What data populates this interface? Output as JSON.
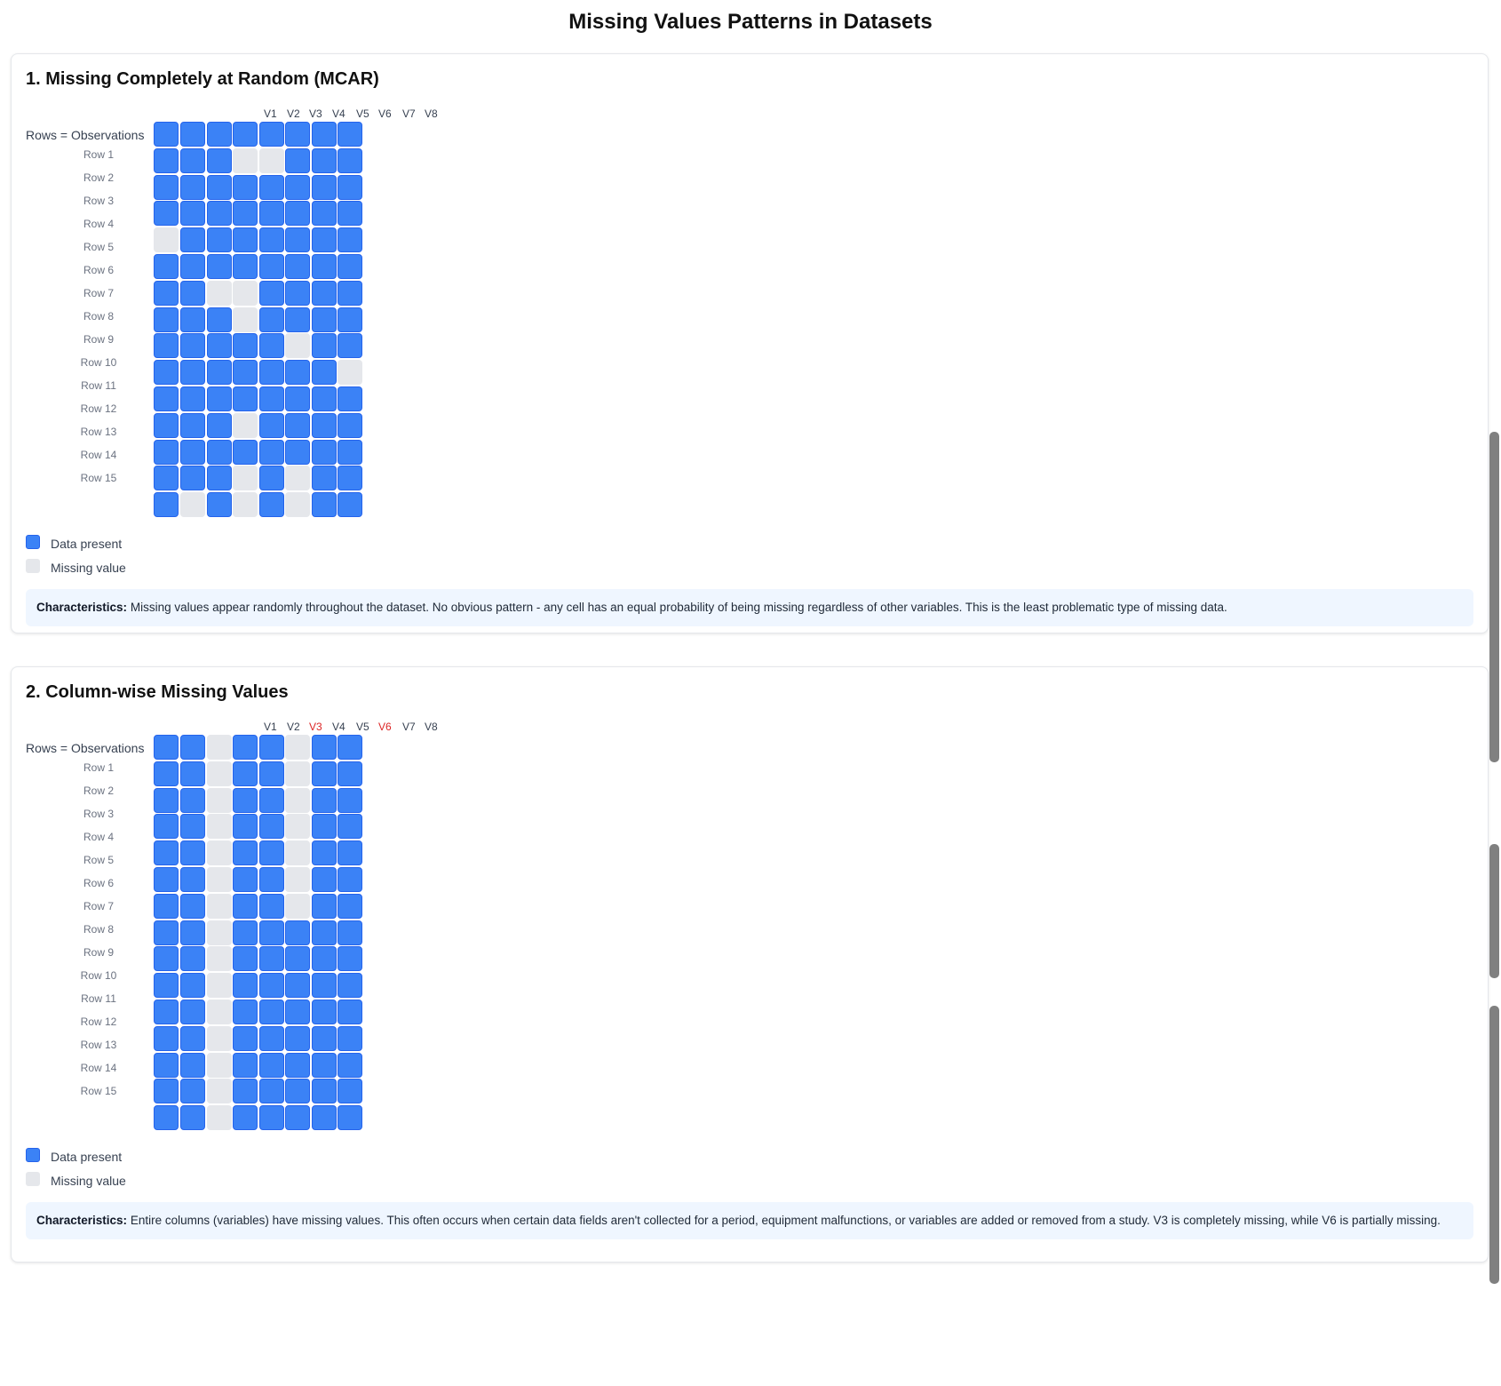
{
  "page_title": "Missing Values Patterns in Datasets",
  "panels": [
    {
      "title": "1. Missing Completely at Random (MCAR)",
      "columns": [
        {
          "label": "V1",
          "missing": false
        },
        {
          "label": "V2",
          "missing": false
        },
        {
          "label": "V3",
          "missing": false
        },
        {
          "label": "V4",
          "missing": false
        },
        {
          "label": "V5",
          "missing": false
        },
        {
          "label": "V6",
          "missing": false
        },
        {
          "label": "V7",
          "missing": false
        },
        {
          "label": "V8",
          "missing": false
        }
      ],
      "rows_title": "Rows = Observations",
      "row_labels": [
        "Row 1",
        "Row 2",
        "Row 3",
        "Row 4",
        "Row 5",
        "Row 6",
        "Row 7",
        "Row 8",
        "Row 9",
        "Row 10",
        "Row 11",
        "Row 12",
        "Row 13",
        "Row 14",
        "Row 15"
      ],
      "matrix": [
        [
          1,
          1,
          1,
          1,
          1,
          1,
          1,
          1
        ],
        [
          1,
          1,
          1,
          0,
          0,
          1,
          1,
          1
        ],
        [
          1,
          1,
          1,
          1,
          1,
          1,
          1,
          1
        ],
        [
          1,
          1,
          1,
          1,
          1,
          1,
          1,
          1
        ],
        [
          0,
          1,
          1,
          1,
          1,
          1,
          1,
          1
        ],
        [
          1,
          1,
          1,
          1,
          1,
          1,
          1,
          1
        ],
        [
          1,
          1,
          0,
          0,
          1,
          1,
          1,
          1
        ],
        [
          1,
          1,
          1,
          0,
          1,
          1,
          1,
          1
        ],
        [
          1,
          1,
          1,
          1,
          1,
          0,
          1,
          1
        ],
        [
          1,
          1,
          1,
          1,
          1,
          1,
          1,
          0
        ],
        [
          1,
          1,
          1,
          1,
          1,
          1,
          1,
          1
        ],
        [
          1,
          1,
          1,
          0,
          1,
          1,
          1,
          1
        ],
        [
          1,
          1,
          1,
          1,
          1,
          1,
          1,
          1
        ],
        [
          1,
          1,
          1,
          0,
          1,
          0,
          1,
          1
        ],
        [
          1,
          0,
          1,
          0,
          1,
          0,
          1,
          1
        ]
      ],
      "legend": {
        "present": "Data present",
        "missing": "Missing value"
      },
      "characteristics_label": "Characteristics:",
      "characteristics_text": "Missing values appear randomly throughout the dataset. No obvious pattern - any cell has an equal probability of being missing regardless of other variables. This is the least problematic type of missing data."
    },
    {
      "title": "2. Column-wise Missing Values",
      "columns": [
        {
          "label": "V1",
          "missing": false
        },
        {
          "label": "V2",
          "missing": false
        },
        {
          "label": "V3",
          "missing": true
        },
        {
          "label": "V4",
          "missing": false
        },
        {
          "label": "V5",
          "missing": false
        },
        {
          "label": "V6",
          "missing": true
        },
        {
          "label": "V7",
          "missing": false
        },
        {
          "label": "V8",
          "missing": false
        }
      ],
      "rows_title": "Rows = Observations",
      "row_labels": [
        "Row 1",
        "Row 2",
        "Row 3",
        "Row 4",
        "Row 5",
        "Row 6",
        "Row 7",
        "Row 8",
        "Row 9",
        "Row 10",
        "Row 11",
        "Row 12",
        "Row 13",
        "Row 14",
        "Row 15"
      ],
      "matrix": [
        [
          1,
          1,
          0,
          1,
          1,
          0,
          1,
          1
        ],
        [
          1,
          1,
          0,
          1,
          1,
          0,
          1,
          1
        ],
        [
          1,
          1,
          0,
          1,
          1,
          0,
          1,
          1
        ],
        [
          1,
          1,
          0,
          1,
          1,
          0,
          1,
          1
        ],
        [
          1,
          1,
          0,
          1,
          1,
          0,
          1,
          1
        ],
        [
          1,
          1,
          0,
          1,
          1,
          0,
          1,
          1
        ],
        [
          1,
          1,
          0,
          1,
          1,
          0,
          1,
          1
        ],
        [
          1,
          1,
          0,
          1,
          1,
          1,
          1,
          1
        ],
        [
          1,
          1,
          0,
          1,
          1,
          1,
          1,
          1
        ],
        [
          1,
          1,
          0,
          1,
          1,
          1,
          1,
          1
        ],
        [
          1,
          1,
          0,
          1,
          1,
          1,
          1,
          1
        ],
        [
          1,
          1,
          0,
          1,
          1,
          1,
          1,
          1
        ],
        [
          1,
          1,
          0,
          1,
          1,
          1,
          1,
          1
        ],
        [
          1,
          1,
          0,
          1,
          1,
          1,
          1,
          1
        ],
        [
          1,
          1,
          0,
          1,
          1,
          1,
          1,
          1
        ]
      ],
      "legend": {
        "present": "Data present",
        "missing": "Missing value"
      },
      "characteristics_label": "Characteristics:",
      "characteristics_text": "Entire columns (variables) have missing values. This often occurs when certain data fields aren't collected for a period, equipment malfunctions, or variables are added or removed from a study. V3 is completely missing, while V6 is partially missing."
    }
  ],
  "colors": {
    "present": "#3b82f6",
    "missing": "#e5e7eb",
    "highlight_header": "#dc2626",
    "characteristics_bg": "#eff6ff"
  }
}
